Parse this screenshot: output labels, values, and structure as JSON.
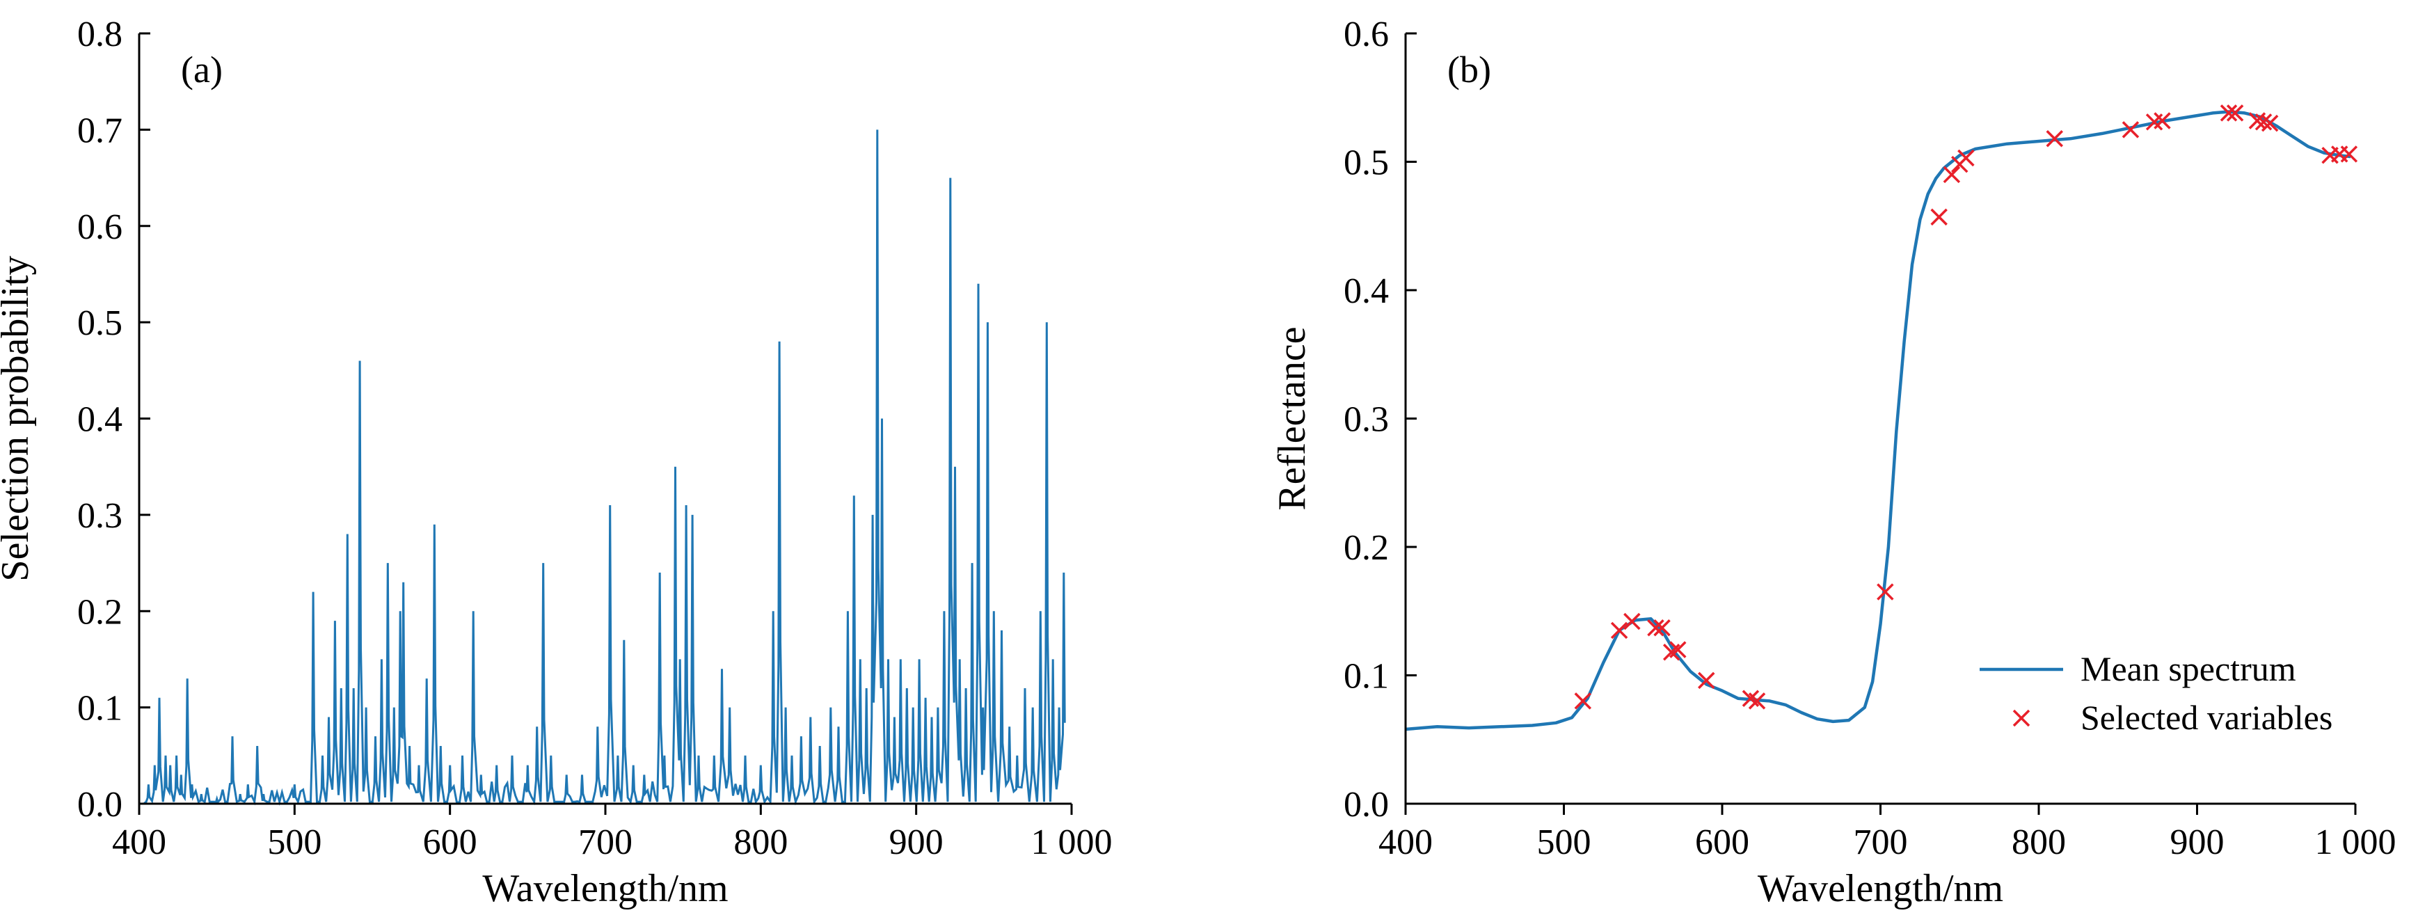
{
  "colors": {
    "line": "#1f77b4",
    "marker": "#e8202a"
  },
  "chart_data": [
    {
      "type": "line",
      "panel_label": "(a)",
      "xlabel": "Wavelength/nm",
      "ylabel": "Selection probability",
      "xlim": [
        400,
        1000
      ],
      "ylim": [
        0,
        0.8
      ],
      "xticks": [
        400,
        500,
        600,
        700,
        800,
        900,
        1000
      ],
      "xtick_labels": [
        "400",
        "500",
        "600",
        "700",
        "800",
        "900",
        "1 000"
      ],
      "yticks": [
        0,
        0.1,
        0.2,
        0.3,
        0.4,
        0.5,
        0.6,
        0.7,
        0.8
      ],
      "ytick_labels": [
        "0.0",
        "0.1",
        "0.2",
        "0.3",
        "0.4",
        "0.5",
        "0.6",
        "0.7",
        "0.8"
      ],
      "grid": false,
      "series": [
        {
          "values_description": "selection probability per wavelength (peaks)",
          "peaks": [
            [
              406,
              0.02
            ],
            [
              410,
              0.04
            ],
            [
              413,
              0.11
            ],
            [
              417,
              0.05
            ],
            [
              420,
              0.04
            ],
            [
              424,
              0.05
            ],
            [
              427,
              0.03
            ],
            [
              431,
              0.13
            ],
            [
              434,
              0.02
            ],
            [
              440,
              0.01
            ],
            [
              450,
              0.005
            ],
            [
              460,
              0.07
            ],
            [
              465,
              0.01
            ],
            [
              470,
              0.02
            ],
            [
              476,
              0.06
            ],
            [
              480,
              0.01
            ],
            [
              500,
              0.02
            ],
            [
              512,
              0.22
            ],
            [
              518,
              0.05
            ],
            [
              522,
              0.09
            ],
            [
              526,
              0.19
            ],
            [
              530,
              0.12
            ],
            [
              534,
              0.28
            ],
            [
              538,
              0.12
            ],
            [
              542,
              0.46
            ],
            [
              546,
              0.1
            ],
            [
              552,
              0.07
            ],
            [
              556,
              0.15
            ],
            [
              560,
              0.25
            ],
            [
              564,
              0.1
            ],
            [
              568,
              0.2
            ],
            [
              570,
              0.23
            ],
            [
              574,
              0.06
            ],
            [
              580,
              0.04
            ],
            [
              585,
              0.13
            ],
            [
              590,
              0.29
            ],
            [
              594,
              0.06
            ],
            [
              600,
              0.04
            ],
            [
              608,
              0.05
            ],
            [
              615,
              0.2
            ],
            [
              620,
              0.03
            ],
            [
              630,
              0.04
            ],
            [
              640,
              0.05
            ],
            [
              650,
              0.04
            ],
            [
              656,
              0.08
            ],
            [
              660,
              0.25
            ],
            [
              665,
              0.05
            ],
            [
              675,
              0.03
            ],
            [
              685,
              0.03
            ],
            [
              695,
              0.08
            ],
            [
              703,
              0.31
            ],
            [
              708,
              0.05
            ],
            [
              712,
              0.17
            ],
            [
              718,
              0.04
            ],
            [
              725,
              0.03
            ],
            [
              735,
              0.24
            ],
            [
              738,
              0.05
            ],
            [
              745,
              0.35
            ],
            [
              748,
              0.15
            ],
            [
              752,
              0.31
            ],
            [
              756,
              0.3
            ],
            [
              760,
              0.05
            ],
            [
              770,
              0.05
            ],
            [
              775,
              0.14
            ],
            [
              780,
              0.1
            ],
            [
              790,
              0.05
            ],
            [
              800,
              0.04
            ],
            [
              808,
              0.2
            ],
            [
              812,
              0.48
            ],
            [
              816,
              0.1
            ],
            [
              820,
              0.05
            ],
            [
              826,
              0.07
            ],
            [
              832,
              0.09
            ],
            [
              838,
              0.06
            ],
            [
              845,
              0.1
            ],
            [
              850,
              0.08
            ],
            [
              856,
              0.2
            ],
            [
              860,
              0.32
            ],
            [
              864,
              0.15
            ],
            [
              868,
              0.12
            ],
            [
              872,
              0.3
            ],
            [
              875,
              0.7
            ],
            [
              878,
              0.4
            ],
            [
              882,
              0.15
            ],
            [
              886,
              0.09
            ],
            [
              890,
              0.15
            ],
            [
              894,
              0.12
            ],
            [
              898,
              0.1
            ],
            [
              902,
              0.15
            ],
            [
              906,
              0.11
            ],
            [
              910,
              0.09
            ],
            [
              914,
              0.1
            ],
            [
              918,
              0.2
            ],
            [
              922,
              0.65
            ],
            [
              925,
              0.35
            ],
            [
              928,
              0.15
            ],
            [
              932,
              0.12
            ],
            [
              936,
              0.25
            ],
            [
              940,
              0.54
            ],
            [
              943,
              0.1
            ],
            [
              946,
              0.5
            ],
            [
              950,
              0.2
            ],
            [
              955,
              0.18
            ],
            [
              960,
              0.08
            ],
            [
              965,
              0.05
            ],
            [
              970,
              0.12
            ],
            [
              975,
              0.1
            ],
            [
              980,
              0.2
            ],
            [
              984,
              0.5
            ],
            [
              988,
              0.15
            ],
            [
              992,
              0.1
            ],
            [
              995,
              0.24
            ]
          ]
        }
      ]
    },
    {
      "type": "line",
      "panel_label": "(b)",
      "xlabel": "Wavelength/nm",
      "ylabel": "Reflectance",
      "xlim": [
        400,
        1000
      ],
      "ylim": [
        0,
        0.6
      ],
      "xticks": [
        400,
        500,
        600,
        700,
        800,
        900,
        1000
      ],
      "xtick_labels": [
        "400",
        "500",
        "600",
        "700",
        "800",
        "900",
        "1 000"
      ],
      "yticks": [
        0,
        0.1,
        0.2,
        0.3,
        0.4,
        0.5,
        0.6
      ],
      "ytick_labels": [
        "0.0",
        "0.1",
        "0.2",
        "0.3",
        "0.4",
        "0.5",
        "0.6"
      ],
      "grid": false,
      "legend_position": "bottom-right",
      "series": [
        {
          "name": "Mean spectrum",
          "x": [
            400,
            420,
            440,
            460,
            480,
            495,
            505,
            515,
            525,
            535,
            545,
            555,
            562,
            570,
            580,
            590,
            600,
            610,
            620,
            630,
            640,
            650,
            660,
            670,
            680,
            690,
            695,
            700,
            705,
            710,
            715,
            720,
            725,
            730,
            735,
            740,
            745,
            750,
            760,
            780,
            800,
            820,
            840,
            860,
            880,
            900,
            910,
            920,
            930,
            940,
            950,
            960,
            970,
            980,
            990,
            997
          ],
          "y": [
            0.058,
            0.06,
            0.059,
            0.06,
            0.061,
            0.063,
            0.067,
            0.082,
            0.11,
            0.135,
            0.143,
            0.144,
            0.135,
            0.118,
            0.103,
            0.093,
            0.088,
            0.082,
            0.081,
            0.08,
            0.077,
            0.071,
            0.066,
            0.064,
            0.065,
            0.075,
            0.095,
            0.14,
            0.2,
            0.29,
            0.36,
            0.42,
            0.455,
            0.475,
            0.487,
            0.495,
            0.5,
            0.505,
            0.51,
            0.514,
            0.516,
            0.518,
            0.522,
            0.527,
            0.532,
            0.536,
            0.538,
            0.539,
            0.538,
            0.535,
            0.528,
            0.52,
            0.512,
            0.507,
            0.505,
            0.504
          ]
        },
        {
          "name": "Selected variables",
          "x": [
            512,
            535,
            543,
            558,
            562,
            568,
            572,
            590,
            618,
            622,
            703,
            737,
            745,
            750,
            754,
            810,
            858,
            873,
            878,
            920,
            924,
            938,
            942,
            946,
            984,
            990,
            996
          ],
          "y": [
            0.08,
            0.135,
            0.142,
            0.137,
            0.137,
            0.118,
            0.12,
            0.096,
            0.082,
            0.08,
            0.165,
            0.457,
            0.49,
            0.498,
            0.503,
            0.518,
            0.525,
            0.531,
            0.532,
            0.538,
            0.538,
            0.532,
            0.531,
            0.53,
            0.505,
            0.506,
            0.506
          ]
        }
      ]
    }
  ]
}
